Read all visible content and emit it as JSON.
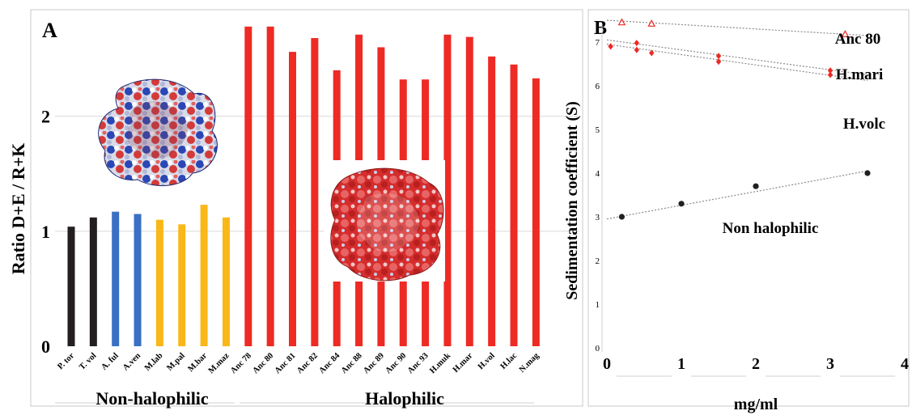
{
  "colors": {
    "black": "#231f20",
    "blue": "#3a6fc4",
    "yellow": "#f9b718",
    "red": "#ee2a24",
    "grid": "#d9d9d9",
    "trend": "#8a8a8a"
  },
  "chart_data": [
    {
      "type": "bar",
      "panel_label": "A",
      "ylabel": "Ratio D+E / R+K",
      "ylim": [
        0,
        2.8
      ],
      "yticks": [
        0,
        1,
        2
      ],
      "categories": [
        "P. tor",
        "T. vol",
        "A. ful",
        "A.ven",
        "M.lab",
        "M.pal",
        "M.bar",
        "M.maz",
        "Anc 78",
        "Anc 80",
        "Anc 81",
        "Anc 82",
        "Anc 84",
        "Anc 88",
        "Anc 89",
        "Anc 90",
        "Anc 93",
        "H.muk",
        "H.mar",
        "H.vol",
        "H.lac",
        "N.mag"
      ],
      "values": [
        1.04,
        1.12,
        1.17,
        1.15,
        1.1,
        1.06,
        1.23,
        1.12,
        2.78,
        2.78,
        2.56,
        2.68,
        2.4,
        2.71,
        2.6,
        2.32,
        2.32,
        2.71,
        2.69,
        2.52,
        2.45,
        2.33
      ],
      "bar_colors": [
        "black",
        "black",
        "blue",
        "blue",
        "yellow",
        "yellow",
        "yellow",
        "yellow",
        "red",
        "red",
        "red",
        "red",
        "red",
        "red",
        "red",
        "red",
        "red",
        "red",
        "red",
        "red",
        "red",
        "red"
      ],
      "group_labels": [
        "Non-halophilic",
        "Halophilic"
      ]
    },
    {
      "type": "scatter",
      "panel_label": "B",
      "xlabel": "mg/ml",
      "ylabel": "Sedimentation coefficient (S)",
      "xlim": [
        0,
        4
      ],
      "ylim": [
        0,
        7.8
      ],
      "xticks": [
        0,
        1,
        2,
        3,
        4
      ],
      "yticks": [
        0,
        1,
        2,
        3,
        4,
        5,
        6,
        7
      ],
      "series": [
        {
          "name": "Anc 80",
          "marker": "open-triangle",
          "color": "red",
          "x": [
            0.2,
            0.6,
            3.2
          ],
          "y": [
            7.45,
            7.42,
            7.18
          ],
          "trend": [
            [
              0.0,
              7.5
            ],
            [
              3.5,
              7.15
            ]
          ]
        },
        {
          "name": "H.mari",
          "marker": "diamond",
          "color": "red",
          "x": [
            0.05,
            0.4,
            1.5,
            3.0
          ],
          "y": [
            6.9,
            6.98,
            6.68,
            6.35
          ],
          "trend": [
            [
              0.0,
              7.05
            ],
            [
              3.5,
              6.25
            ]
          ]
        },
        {
          "name": "H.volc",
          "marker": "diamond",
          "color": "red",
          "x": [
            0.05,
            0.4,
            0.6,
            1.5,
            3.0
          ],
          "y": [
            6.9,
            6.82,
            6.75,
            6.55,
            6.25
          ],
          "trend": [
            [
              0.0,
              6.95
            ],
            [
              3.5,
              6.12
            ]
          ]
        },
        {
          "name": "Non halophilic",
          "marker": "dot",
          "color": "black",
          "x": [
            0.2,
            1.0,
            2.0,
            3.5
          ],
          "y": [
            3.0,
            3.3,
            3.7,
            4.0
          ],
          "trend": [
            [
              0.0,
              2.95
            ],
            [
              3.5,
              4.05
            ]
          ]
        }
      ]
    }
  ],
  "illustrations": [
    "protein-surface-top",
    "protein-surface-bottom"
  ]
}
